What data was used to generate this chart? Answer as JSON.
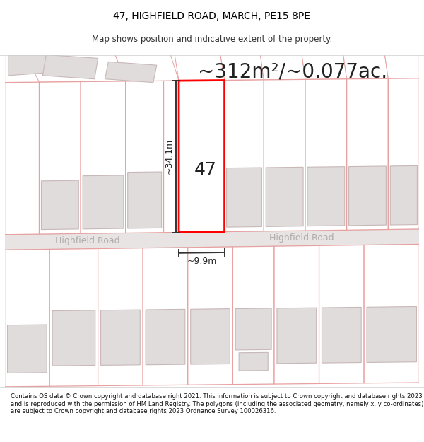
{
  "title": "47, HIGHFIELD ROAD, MARCH, PE15 8PE",
  "subtitle": "Map shows position and indicative extent of the property.",
  "area_text": "~312m²/~0.077ac.",
  "property_number": "47",
  "dim_width": "~9.9m",
  "dim_height": "~34.1m",
  "road_name": "Highfield Road",
  "footer": "Contains OS data © Crown copyright and database right 2021. This information is subject to Crown copyright and database rights 2023 and is reproduced with the permission of HM Land Registry. The polygons (including the associated geometry, namely x, y co-ordinates) are subject to Crown copyright and database rights 2023 Ordnance Survey 100026316.",
  "map_bg": "#f9f6f6",
  "plot_edge": "#e8a0a0",
  "building_fill": "#e0dcdc",
  "building_edge": "#c8b8b8",
  "road_fill": "#e8e4e4",
  "road_edge": "#c8c4c4",
  "road_text": "#b0acac",
  "title_fontsize": 10,
  "subtitle_fontsize": 8.5,
  "area_fontsize": 20,
  "prop_label_fontsize": 18,
  "dim_fontsize": 9
}
